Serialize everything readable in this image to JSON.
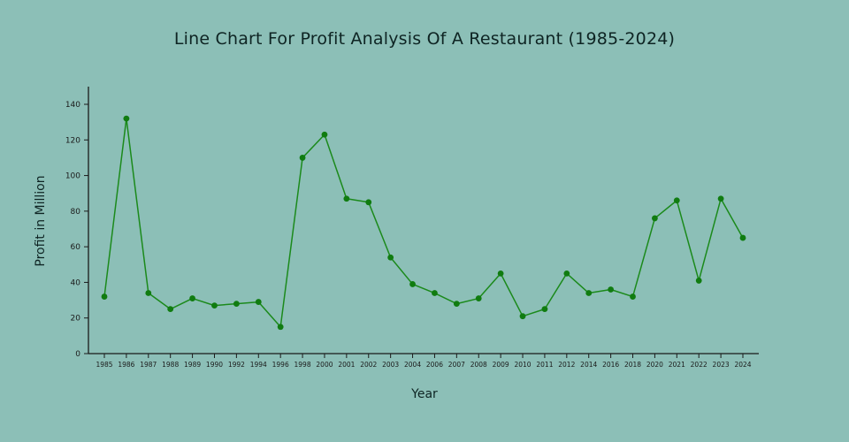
{
  "page": {
    "background_color": "#8cbfb7",
    "text_color": "#0e2423"
  },
  "chart_data": {
    "type": "line",
    "title": "Line Chart For Profit Analysis Of A Restaurant (1985-2024)",
    "xlabel": "Year",
    "ylabel": "Profit in Million",
    "categories": [
      "1985",
      "1986",
      "1987",
      "1988",
      "1989",
      "1990",
      "1992",
      "1994",
      "1996",
      "1998",
      "2000",
      "2001",
      "2002",
      "2003",
      "2004",
      "2006",
      "2007",
      "2008",
      "2009",
      "2010",
      "2011",
      "2012",
      "2014",
      "2016",
      "2018",
      "2020",
      "2021",
      "2022",
      "2023",
      "2024"
    ],
    "values": [
      32,
      132,
      34,
      25,
      31,
      27,
      28,
      29,
      15,
      110,
      123,
      87,
      85,
      54,
      39,
      34,
      28,
      31,
      45,
      21,
      25,
      45,
      34,
      36,
      32,
      76,
      86,
      41,
      87,
      65
    ],
    "ylim": [
      0,
      140
    ],
    "yticks": [
      0,
      20,
      40,
      60,
      80,
      100,
      120,
      140
    ],
    "grid": false,
    "legend_position": "none",
    "line_color": "#1b8a1b",
    "marker_color": "#107c10",
    "axis_color": "#1a1a1a"
  }
}
